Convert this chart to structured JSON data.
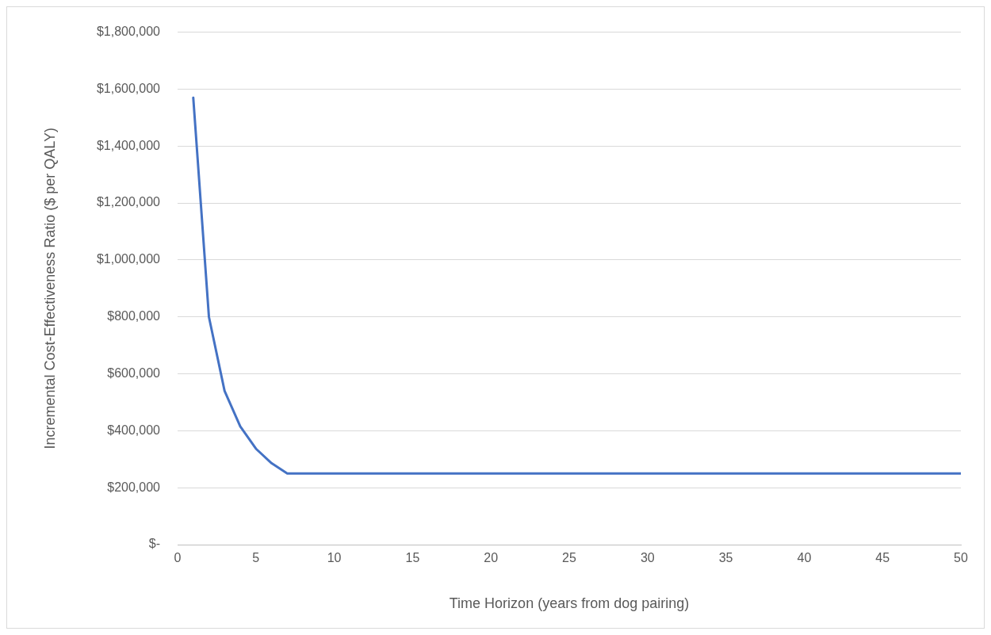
{
  "chart_data": {
    "type": "line",
    "xlabel": "Time Horizon (years from dog pairing)",
    "ylabel": "Incremental Cost-Effectiveness Ratio ($ per QALY)",
    "x": [
      1,
      2,
      3,
      4,
      5,
      6,
      7,
      50
    ],
    "series": [
      {
        "color": "#4472c4",
        "values": [
          1570000,
          800000,
          540000,
          415000,
          337000,
          286000,
          250000,
          250000
        ]
      }
    ],
    "xlim": [
      0,
      50
    ],
    "xticks": [
      0,
      5,
      10,
      15,
      20,
      25,
      30,
      35,
      40,
      45,
      50
    ],
    "ylim": [
      0,
      1800000
    ],
    "yticks": [
      {
        "value": 0,
        "label": "$-"
      },
      {
        "value": 200000,
        "label": "$200,000"
      },
      {
        "value": 400000,
        "label": "$400,000"
      },
      {
        "value": 600000,
        "label": "$600,000"
      },
      {
        "value": 800000,
        "label": "$800,000"
      },
      {
        "value": 1000000,
        "label": "$1,000,000"
      },
      {
        "value": 1200000,
        "label": "$1,200,000"
      },
      {
        "value": 1400000,
        "label": "$1,400,000"
      },
      {
        "value": 1600000,
        "label": "$1,600,000"
      },
      {
        "value": 1800000,
        "label": "$1,800,000"
      }
    ],
    "grid": "y",
    "legend": false,
    "marker": "none",
    "line_style": "solid"
  }
}
